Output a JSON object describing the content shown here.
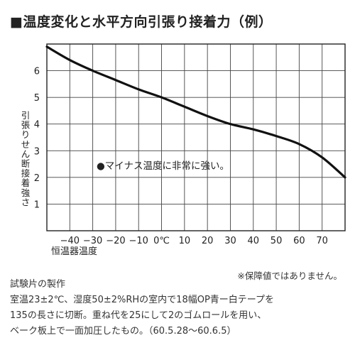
{
  "title": "■温度変化と水平方向引張り接着力（例）",
  "chart_data": {
    "type": "line",
    "title": "■温度変化と水平方向引張り接着力（例）",
    "xlabel": "恒温器温度",
    "ylabel": "引張りせん断接着強さ",
    "x_ticks": [
      "−40",
      "−30",
      "−20",
      "−10",
      "0℃",
      "10",
      "20",
      "30",
      "40",
      "50",
      "60",
      "70"
    ],
    "y_ticks": [
      "1",
      "2",
      "3",
      "4",
      "5",
      "6"
    ],
    "xlim": [
      -50,
      80
    ],
    "ylim": [
      0,
      7
    ],
    "grid": true,
    "series": [
      {
        "x": [
          -50,
          -40,
          -30,
          -20,
          -10,
          0,
          10,
          20,
          30,
          40,
          50,
          60,
          70,
          80
        ],
        "y": [
          6.9,
          6.4,
          6.0,
          5.65,
          5.3,
          5.0,
          4.65,
          4.3,
          4.0,
          3.8,
          3.55,
          3.25,
          2.75,
          2.0
        ]
      }
    ],
    "annotation": "●マイナス温度に非常に強い。"
  },
  "notes": {
    "guarantee": "※保障値ではありません。",
    "test_piece_heading": "試験片の製作",
    "test_piece_line1": "室温23±2℃、湿度50±2%RHの室内で18幅OP青ー白テープを",
    "test_piece_line2": "135の長さに切断。重ね代を25にして2のゴムロールを用い、",
    "test_piece_line3": "ベーク板上で一面加圧したもの。（60.5.28〜60.6.5）"
  }
}
